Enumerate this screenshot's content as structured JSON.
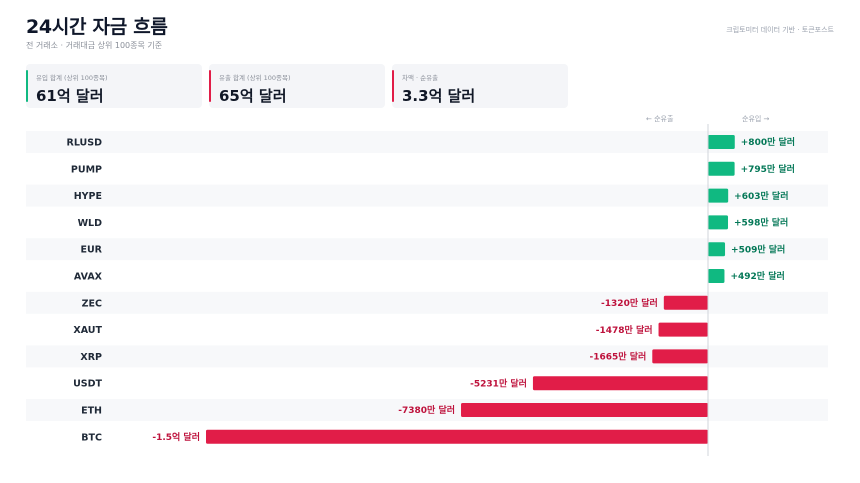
{
  "header": {
    "title": "24시간 자금 흐름",
    "subtitle": "전 거래소 · 거래대금 상위 100종목 기준",
    "source": "크립토미터 데이터 기반 · 토큰포스트"
  },
  "cards": [
    {
      "label": "유입 합계 (상위 100종목)",
      "value": "61억 달러",
      "color": "#10b981"
    },
    {
      "label": "유출 합계 (상위 100종목)",
      "value": "65억 달러",
      "color": "#e11d48"
    },
    {
      "label": "차액 · 순유출",
      "value": "3.3억 달러",
      "color": "#e11d48"
    }
  ],
  "direction": {
    "left": "← 순유출",
    "right": "순유입 →"
  },
  "colors": {
    "positive": "#10b981",
    "negative": "#e11d48",
    "positive_text": "#047857",
    "negative_text": "#be123c"
  },
  "chart_data": {
    "type": "bar",
    "orientation": "horizontal",
    "unit": "만 달러",
    "categories": [
      "RLUSD",
      "PUMP",
      "HYPE",
      "WLD",
      "EUR",
      "AVAX",
      "ZEC",
      "XAUT",
      "XRP",
      "USDT",
      "ETH",
      "BTC"
    ],
    "values": [
      800,
      795,
      603,
      598,
      509,
      492,
      -1320,
      -1478,
      -1665,
      -5231,
      -7380,
      -15000
    ],
    "labels": [
      "+800만 달러",
      "+795만 달러",
      "+603만 달러",
      "+598만 달러",
      "+509만 달러",
      "+492만 달러",
      "-1320만 달러",
      "-1478만 달러",
      "-1665만 달러",
      "-5231만 달러",
      "-7380만 달러",
      "-1.5억 달러"
    ]
  }
}
